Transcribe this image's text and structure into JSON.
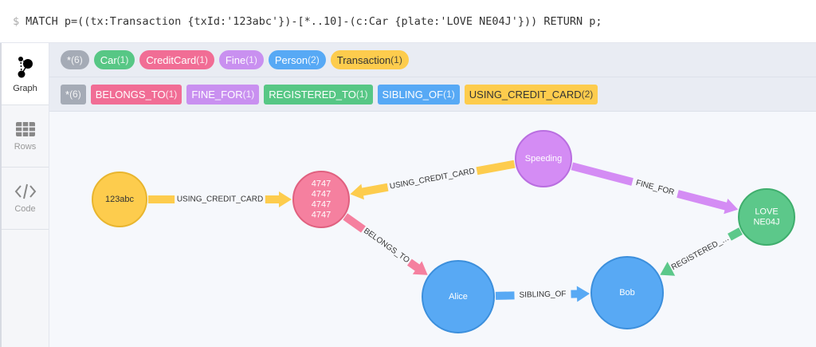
{
  "query": {
    "prompt": "$",
    "text": "MATCH p=((tx:Transaction {txId:'123abc'})-[*..10]-(c:Car {plate:'LOVE NE04J'})) RETURN p;"
  },
  "sidebar": {
    "items": [
      {
        "label": "Graph",
        "icon": "graph-icon",
        "active": true
      },
      {
        "label": "Rows",
        "icon": "table-icon"
      },
      {
        "label": "Code",
        "icon": "code-icon"
      }
    ]
  },
  "node_labels": [
    {
      "name": "*",
      "count": "(6)",
      "color": "#a5abb6"
    },
    {
      "name": "Car",
      "count": "(1)",
      "color": "#57c785"
    },
    {
      "name": "CreditCard",
      "count": "(1)",
      "color": "#f16d95"
    },
    {
      "name": "Fine",
      "count": "(1)",
      "color": "#c990f0"
    },
    {
      "name": "Person",
      "count": "(2)",
      "color": "#57a9f5"
    },
    {
      "name": "Transaction",
      "count": "(1)",
      "color": "#fdcc4d",
      "dark": true
    }
  ],
  "rel_types": [
    {
      "name": "*",
      "count": "(6)",
      "color": "#a5abb6"
    },
    {
      "name": "BELONGS_TO",
      "count": "(1)",
      "color": "#f16d95"
    },
    {
      "name": "FINE_FOR",
      "count": "(1)",
      "color": "#c990f0"
    },
    {
      "name": "REGISTERED_TO",
      "count": "(1)",
      "color": "#57c785"
    },
    {
      "name": "SIBLING_OF",
      "count": "(1)",
      "color": "#57a9f5"
    },
    {
      "name": "USING_CREDIT_CARD",
      "count": "(2)",
      "color": "#fdcc4d",
      "dark": true
    }
  ],
  "graph": {
    "nodes": [
      {
        "id": "tx",
        "lines": [
          "123abc"
        ],
        "color": "#fdcc4d",
        "stroke": "#e8b52e",
        "text": "#333"
      },
      {
        "id": "cc",
        "lines": [
          "4747",
          "4747",
          "4747",
          "4747"
        ],
        "color": "#f5809f",
        "stroke": "#e0607f",
        "text": "#fff"
      },
      {
        "id": "fine",
        "lines": [
          "Speeding"
        ],
        "color": "#d48cf4",
        "stroke": "#b96ee0",
        "text": "#fff"
      },
      {
        "id": "car",
        "lines": [
          "LOVE",
          "NE04J"
        ],
        "color": "#5cc88a",
        "stroke": "#3fae6d",
        "text": "#fff"
      },
      {
        "id": "alice",
        "lines": [
          "Alice"
        ],
        "color": "#58a9f4",
        "stroke": "#3c8fdc",
        "text": "#fff"
      },
      {
        "id": "bob",
        "lines": [
          "Bob"
        ],
        "color": "#58a9f4",
        "stroke": "#3c8fdc",
        "text": "#fff"
      }
    ],
    "rels": [
      {
        "from": "tx",
        "to": "cc",
        "label": "USING_CREDIT_CARD",
        "color": "#fdcc4d"
      },
      {
        "from": "fine",
        "to": "cc",
        "label": "USING_CREDIT_CARD",
        "color": "#fdcc4d"
      },
      {
        "from": "fine",
        "to": "car",
        "label": "FINE_FOR",
        "color": "#d48cf4"
      },
      {
        "from": "cc",
        "to": "alice",
        "label": "BELONGS_TO",
        "color": "#f5809f"
      },
      {
        "from": "alice",
        "to": "bob",
        "label": "SIBLING_OF",
        "color": "#58a9f4"
      },
      {
        "from": "car",
        "to": "bob",
        "label": "REGISTERED_…",
        "color": "#5cc88a"
      }
    ]
  }
}
